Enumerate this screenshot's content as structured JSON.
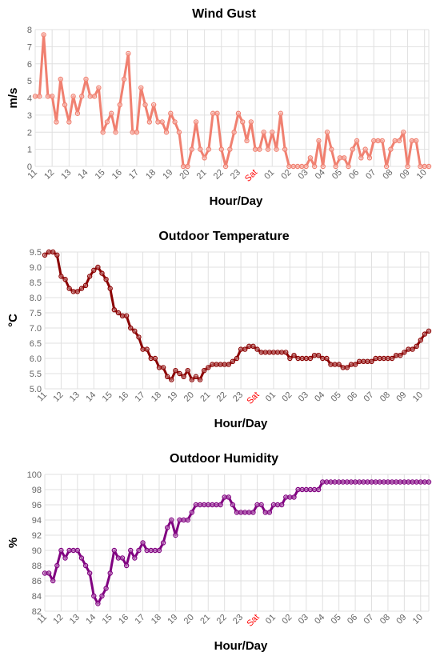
{
  "chart_data": [
    {
      "type": "line",
      "title": "Wind Gust",
      "xlabel": "Hour/Day",
      "ylabel": "m/s",
      "ylim": [
        0,
        8
      ],
      "yticks": [
        "0",
        "1",
        "2",
        "3",
        "4",
        "5",
        "6",
        "7",
        "8"
      ],
      "xticks": [
        "11",
        "12",
        "13",
        "14",
        "15",
        "16",
        "17",
        "18",
        "19",
        "20",
        "21",
        "22",
        "23",
        "Sat",
        "01",
        "02",
        "03",
        "04",
        "05",
        "06",
        "07",
        "08",
        "09",
        "10"
      ],
      "highlight_tick": "Sat",
      "color": "#f08070",
      "grid": true,
      "x_start_hour": 11,
      "samples_per_hour": 4,
      "values": [
        4.1,
        4.1,
        7.7,
        4.1,
        4.1,
        2.6,
        5.1,
        3.6,
        2.6,
        4.1,
        3.1,
        4.1,
        5.1,
        4.1,
        4.1,
        4.6,
        2.0,
        2.6,
        3.1,
        2.0,
        3.6,
        5.1,
        6.6,
        2.0,
        2.0,
        4.6,
        3.6,
        2.6,
        3.6,
        2.6,
        2.6,
        2.0,
        3.1,
        2.6,
        2.0,
        0.0,
        0.0,
        1.0,
        2.6,
        1.0,
        0.5,
        1.0,
        3.1,
        3.1,
        1.0,
        0.0,
        1.0,
        2.0,
        3.1,
        2.6,
        1.5,
        2.6,
        1.0,
        1.0,
        2.0,
        1.0,
        2.0,
        1.0,
        3.1,
        1.0,
        0.0,
        0.0,
        0.0,
        0.0,
        0.0,
        0.5,
        0.0,
        1.5,
        0.0,
        2.0,
        1.0,
        0.0,
        0.5,
        0.5,
        0.0,
        1.0,
        1.5,
        0.5,
        1.0,
        0.5,
        1.5,
        1.5,
        1.5,
        0.0,
        1.0,
        1.5,
        1.5,
        2.0,
        0.0,
        1.5,
        1.5,
        0.0,
        0.0,
        0.0
      ]
    },
    {
      "type": "line",
      "title": "Outdoor Temperature",
      "xlabel": "Hour/Day",
      "ylabel": "°C",
      "ylim": [
        5.0,
        9.5
      ],
      "yticks": [
        "5.0",
        "5.5",
        "6.0",
        "6.5",
        "7.0",
        "7.5",
        "8.0",
        "8.5",
        "9.0",
        "9.5"
      ],
      "xticks": [
        "11",
        "12",
        "13",
        "14",
        "15",
        "16",
        "17",
        "18",
        "19",
        "20",
        "21",
        "22",
        "23",
        "Sat",
        "01",
        "02",
        "03",
        "04",
        "05",
        "06",
        "07",
        "08",
        "09",
        "10"
      ],
      "highlight_tick": "Sat",
      "color": "#8b0000",
      "grid": true,
      "x_start_hour": 11,
      "samples_per_hour": 4,
      "values": [
        9.4,
        9.5,
        9.5,
        9.4,
        8.7,
        8.6,
        8.3,
        8.2,
        8.2,
        8.3,
        8.4,
        8.7,
        8.9,
        9.0,
        8.8,
        8.6,
        8.3,
        7.6,
        7.5,
        7.4,
        7.4,
        7.0,
        6.9,
        6.7,
        6.3,
        6.3,
        6.0,
        6.0,
        5.7,
        5.7,
        5.4,
        5.3,
        5.6,
        5.5,
        5.4,
        5.6,
        5.3,
        5.4,
        5.3,
        5.6,
        5.7,
        5.8,
        5.8,
        5.8,
        5.8,
        5.8,
        5.9,
        6.0,
        6.3,
        6.3,
        6.4,
        6.4,
        6.3,
        6.2,
        6.2,
        6.2,
        6.2,
        6.2,
        6.2,
        6.2,
        6.0,
        6.1,
        6.0,
        6.0,
        6.0,
        6.0,
        6.1,
        6.1,
        6.0,
        6.0,
        5.8,
        5.8,
        5.8,
        5.7,
        5.7,
        5.8,
        5.8,
        5.9,
        5.9,
        5.9,
        5.9,
        6.0,
        6.0,
        6.0,
        6.0,
        6.0,
        6.1,
        6.1,
        6.2,
        6.3,
        6.3,
        6.4,
        6.6,
        6.8,
        6.9
      ]
    },
    {
      "type": "line",
      "title": "Outdoor Humidity",
      "xlabel": "Hour/Day",
      "ylabel": "%",
      "ylim": [
        82,
        100
      ],
      "yticks": [
        "82",
        "84",
        "86",
        "88",
        "90",
        "92",
        "94",
        "96",
        "98",
        "100"
      ],
      "xticks": [
        "11",
        "12",
        "13",
        "14",
        "15",
        "16",
        "17",
        "18",
        "19",
        "20",
        "21",
        "22",
        "23",
        "Sat",
        "01",
        "02",
        "03",
        "04",
        "05",
        "06",
        "07",
        "08",
        "09",
        "10"
      ],
      "highlight_tick": "Sat",
      "color": "#800080",
      "grid": true,
      "x_start_hour": 11,
      "samples_per_hour": 4,
      "values": [
        87,
        87,
        86,
        88,
        90,
        89,
        90,
        90,
        90,
        89,
        88,
        87,
        84,
        83,
        84,
        85,
        87,
        90,
        89,
        89,
        88,
        90,
        89,
        90,
        91,
        90,
        90,
        90,
        90,
        91,
        93,
        94,
        92,
        94,
        94,
        94,
        95,
        96,
        96,
        96,
        96,
        96,
        96,
        96,
        97,
        97,
        96,
        95,
        95,
        95,
        95,
        95,
        96,
        96,
        95,
        95,
        96,
        96,
        96,
        97,
        97,
        97,
        98,
        98,
        98,
        98,
        98,
        98,
        99,
        99,
        99,
        99,
        99,
        99,
        99,
        99,
        99,
        99,
        99,
        99,
        99,
        99,
        99,
        99,
        99,
        99,
        99,
        99,
        99,
        99,
        99,
        99,
        99,
        99,
        99
      ]
    }
  ]
}
